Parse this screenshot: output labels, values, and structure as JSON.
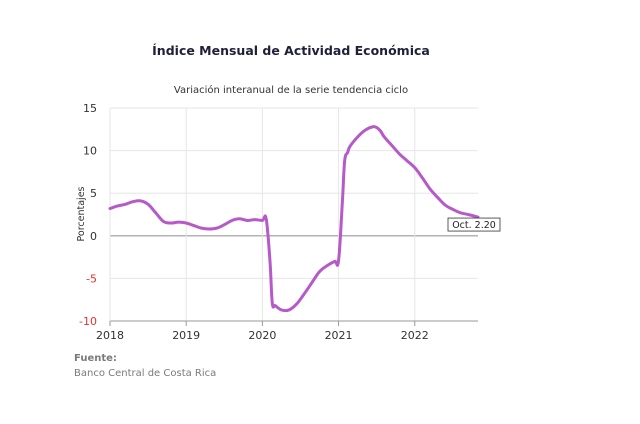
{
  "chart_data": {
    "type": "line",
    "title": "Índice Mensual de  Actividad Económica",
    "subtitle": "Variación interanual de la serie tendencia ciclo",
    "ylabel": "Porcentajes",
    "xlabel": "",
    "ylim": [
      -10,
      15
    ],
    "xlim": [
      2018.0,
      2022.83
    ],
    "yticks": [
      15,
      10,
      5,
      0,
      -5,
      -10
    ],
    "xticks": [
      "2018",
      "2019",
      "2020",
      "2021",
      "2022"
    ],
    "grid": true,
    "line_color": "#b659c9",
    "negative_tick_color": "#e8312f",
    "series": [
      {
        "name": "",
        "x": [
          2018.0,
          2018.1,
          2018.2,
          2018.3,
          2018.4,
          2018.5,
          2018.6,
          2018.7,
          2018.8,
          2018.9,
          2019.0,
          2019.1,
          2019.2,
          2019.3,
          2019.4,
          2019.5,
          2019.6,
          2019.7,
          2019.8,
          2019.9,
          2020.0,
          2020.05,
          2020.1,
          2020.13,
          2020.17,
          2020.25,
          2020.35,
          2020.45,
          2020.55,
          2020.65,
          2020.75,
          2020.85,
          2020.95,
          2021.0,
          2021.05,
          2021.08,
          2021.12,
          2021.15,
          2021.25,
          2021.35,
          2021.45,
          2021.5,
          2021.55,
          2021.6,
          2021.7,
          2021.8,
          2021.9,
          2022.0,
          2022.1,
          2022.2,
          2022.3,
          2022.4,
          2022.5,
          2022.6,
          2022.7,
          2022.83
        ],
        "y": [
          3.2,
          3.5,
          3.7,
          4.0,
          4.1,
          3.7,
          2.7,
          1.7,
          1.5,
          1.6,
          1.5,
          1.2,
          0.9,
          0.8,
          0.9,
          1.3,
          1.8,
          2.0,
          1.8,
          1.9,
          1.8,
          2.0,
          -3.0,
          -7.9,
          -8.2,
          -8.7,
          -8.7,
          -8.0,
          -6.8,
          -5.5,
          -4.2,
          -3.5,
          -3.0,
          -2.9,
          4.0,
          8.8,
          9.8,
          10.5,
          11.6,
          12.4,
          12.8,
          12.7,
          12.3,
          11.6,
          10.6,
          9.6,
          8.8,
          8.0,
          6.8,
          5.5,
          4.5,
          3.6,
          3.1,
          2.7,
          2.5,
          2.2
        ]
      }
    ],
    "annotations": [
      {
        "label": "Oct. 2.20",
        "x": 2022.83,
        "y": 2.2
      }
    ]
  },
  "source": {
    "title": "Fuente:",
    "text": "Banco Central de Costa Rica"
  }
}
